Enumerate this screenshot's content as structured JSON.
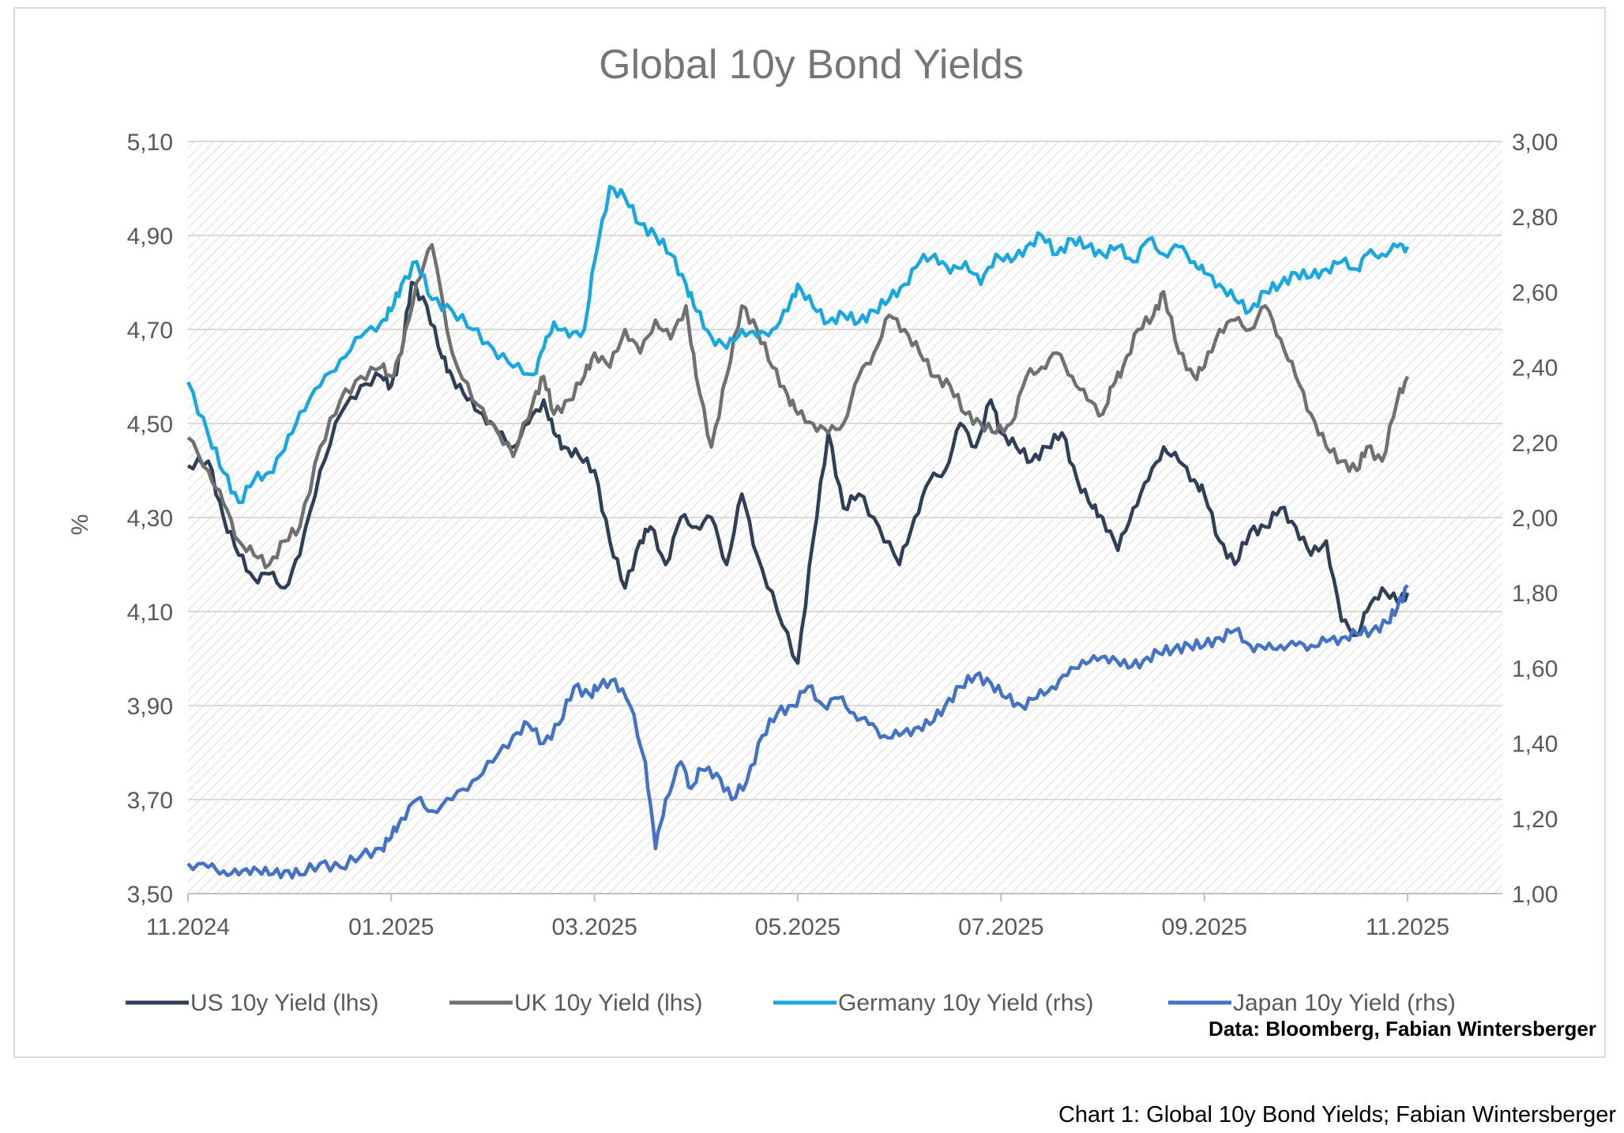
{
  "chart_data": {
    "type": "line",
    "title": "Global 10y Bond Yields",
    "ylabel": "%",
    "y2label": "",
    "ylim": [
      3.5,
      5.1
    ],
    "y2lim": [
      1.0,
      3.0
    ],
    "grid": true,
    "legend_position": "bottom",
    "x_ticks": [
      "11.2024",
      "01.2025",
      "03.2025",
      "05.2025",
      "07.2025",
      "09.2025",
      "11.2025"
    ],
    "x_tick_months": [
      0,
      2,
      4,
      6,
      8,
      10,
      12
    ],
    "y_ticks": [
      "3,50",
      "3,70",
      "3,90",
      "4,10",
      "4,30",
      "4,50",
      "4,70",
      "4,90",
      "5,10"
    ],
    "y_tick_values": [
      3.5,
      3.7,
      3.9,
      4.1,
      4.3,
      4.5,
      4.7,
      4.9,
      5.1
    ],
    "y2_ticks": [
      "1,00",
      "1,20",
      "1,40",
      "1,60",
      "1,80",
      "2,00",
      "2,20",
      "2,40",
      "2,60",
      "2,80",
      "3,00"
    ],
    "y2_tick_values": [
      1.0,
      1.2,
      1.4,
      1.6,
      1.8,
      2.0,
      2.2,
      2.4,
      2.6,
      2.8,
      3.0
    ],
    "series": [
      {
        "name": "US 10y Yield (lhs)",
        "axis": "left",
        "color": "#2e3f57",
        "x": [
          0,
          0.2,
          0.35,
          0.5,
          0.65,
          0.8,
          0.95,
          1.1,
          1.3,
          1.5,
          1.7,
          1.9,
          2.0,
          2.1,
          2.2,
          2.35,
          2.5,
          2.6,
          2.75,
          2.9,
          3.05,
          3.2,
          3.35,
          3.5,
          3.6,
          3.7,
          3.85,
          4.0,
          4.15,
          4.3,
          4.45,
          4.55,
          4.7,
          4.85,
          5.0,
          5.15,
          5.3,
          5.45,
          5.6,
          5.8,
          6.0,
          6.15,
          6.3,
          6.45,
          6.6,
          6.8,
          7.0,
          7.15,
          7.3,
          7.45,
          7.6,
          7.75,
          7.9,
          8.0,
          8.15,
          8.3,
          8.45,
          8.6,
          8.75,
          8.9,
          9.0,
          9.15,
          9.3,
          9.45,
          9.6,
          9.75,
          9.9,
          10.0,
          10.15,
          10.3,
          10.45,
          10.6,
          10.75,
          10.9,
          11.05,
          11.2,
          11.35,
          11.5,
          11.6,
          11.75,
          11.9,
          12.0
        ],
        "values": [
          4.41,
          4.42,
          4.3,
          4.22,
          4.17,
          4.18,
          4.15,
          4.22,
          4.4,
          4.52,
          4.58,
          4.6,
          4.58,
          4.65,
          4.8,
          4.75,
          4.64,
          4.6,
          4.55,
          4.52,
          4.48,
          4.45,
          4.5,
          4.55,
          4.48,
          4.45,
          4.43,
          4.4,
          4.25,
          4.15,
          4.25,
          4.28,
          4.2,
          4.3,
          4.28,
          4.3,
          4.2,
          4.35,
          4.22,
          4.1,
          3.99,
          4.25,
          4.48,
          4.32,
          4.35,
          4.28,
          4.2,
          4.3,
          4.38,
          4.4,
          4.5,
          4.45,
          4.55,
          4.48,
          4.45,
          4.42,
          4.45,
          4.48,
          4.38,
          4.32,
          4.3,
          4.23,
          4.32,
          4.38,
          4.45,
          4.42,
          4.38,
          4.35,
          4.25,
          4.2,
          4.27,
          4.28,
          4.32,
          4.28,
          4.22,
          4.25,
          4.08,
          4.05,
          4.1,
          4.15,
          4.12,
          4.14
        ]
      },
      {
        "name": "UK 10y Yield (lhs)",
        "axis": "left",
        "color": "#707070",
        "x": [
          0,
          0.2,
          0.35,
          0.5,
          0.65,
          0.8,
          0.95,
          1.1,
          1.3,
          1.5,
          1.7,
          1.9,
          2.0,
          2.1,
          2.25,
          2.4,
          2.6,
          2.8,
          3.0,
          3.2,
          3.4,
          3.5,
          3.6,
          3.75,
          3.9,
          4.0,
          4.15,
          4.3,
          4.45,
          4.6,
          4.75,
          4.9,
          5.0,
          5.15,
          5.3,
          5.45,
          5.6,
          5.75,
          5.9,
          6.0,
          6.15,
          6.3,
          6.45,
          6.6,
          6.75,
          6.9,
          7.05,
          7.2,
          7.35,
          7.5,
          7.65,
          7.8,
          7.95,
          8.1,
          8.25,
          8.4,
          8.55,
          8.7,
          8.85,
          9.0,
          9.1,
          9.2,
          9.35,
          9.5,
          9.6,
          9.75,
          9.9,
          10.0,
          10.15,
          10.3,
          10.45,
          10.6,
          10.75,
          10.9,
          11.05,
          11.2,
          11.35,
          11.5,
          11.6,
          11.75,
          11.9,
          12.0
        ],
        "values": [
          4.47,
          4.4,
          4.33,
          4.25,
          4.22,
          4.2,
          4.25,
          4.28,
          4.45,
          4.55,
          4.6,
          4.62,
          4.6,
          4.65,
          4.8,
          4.88,
          4.65,
          4.55,
          4.5,
          4.43,
          4.55,
          4.6,
          4.52,
          4.55,
          4.6,
          4.65,
          4.62,
          4.7,
          4.65,
          4.72,
          4.68,
          4.75,
          4.6,
          4.45,
          4.6,
          4.75,
          4.7,
          4.62,
          4.56,
          4.52,
          4.5,
          4.48,
          4.5,
          4.6,
          4.65,
          4.73,
          4.7,
          4.65,
          4.6,
          4.58,
          4.52,
          4.5,
          4.48,
          4.5,
          4.6,
          4.62,
          4.65,
          4.6,
          4.55,
          4.52,
          4.58,
          4.62,
          4.7,
          4.73,
          4.78,
          4.65,
          4.6,
          4.62,
          4.7,
          4.72,
          4.7,
          4.75,
          4.68,
          4.6,
          4.52,
          4.45,
          4.42,
          4.4,
          4.45,
          4.42,
          4.55,
          4.6
        ]
      },
      {
        "name": "Germany 10y Yield (rhs)",
        "axis": "right",
        "color": "#19a7e0",
        "x": [
          0,
          0.2,
          0.35,
          0.5,
          0.65,
          0.8,
          0.95,
          1.1,
          1.3,
          1.5,
          1.7,
          1.9,
          2.0,
          2.1,
          2.25,
          2.4,
          2.6,
          2.8,
          3.0,
          3.2,
          3.4,
          3.5,
          3.6,
          3.75,
          3.9,
          4.0,
          4.15,
          4.3,
          4.45,
          4.6,
          4.75,
          4.9,
          5.0,
          5.15,
          5.3,
          5.45,
          5.6,
          5.75,
          5.9,
          6.0,
          6.15,
          6.3,
          6.45,
          6.6,
          6.75,
          6.9,
          7.05,
          7.2,
          7.35,
          7.5,
          7.65,
          7.8,
          7.95,
          8.1,
          8.25,
          8.4,
          8.55,
          8.7,
          8.85,
          9.0,
          9.15,
          9.3,
          9.45,
          9.6,
          9.75,
          9.9,
          10.0,
          10.15,
          10.3,
          10.45,
          10.6,
          10.75,
          10.9,
          11.05,
          11.2,
          11.35,
          11.5,
          11.6,
          11.75,
          11.9,
          12.0
        ],
        "values": [
          2.36,
          2.22,
          2.12,
          2.04,
          2.1,
          2.12,
          2.18,
          2.28,
          2.35,
          2.42,
          2.48,
          2.52,
          2.55,
          2.62,
          2.68,
          2.58,
          2.55,
          2.5,
          2.45,
          2.4,
          2.38,
          2.45,
          2.52,
          2.48,
          2.5,
          2.68,
          2.88,
          2.85,
          2.78,
          2.75,
          2.7,
          2.62,
          2.55,
          2.48,
          2.45,
          2.5,
          2.48,
          2.5,
          2.55,
          2.62,
          2.56,
          2.52,
          2.54,
          2.52,
          2.55,
          2.58,
          2.62,
          2.68,
          2.7,
          2.65,
          2.68,
          2.62,
          2.7,
          2.68,
          2.72,
          2.75,
          2.7,
          2.74,
          2.72,
          2.7,
          2.72,
          2.68,
          2.74,
          2.7,
          2.72,
          2.68,
          2.65,
          2.62,
          2.58,
          2.55,
          2.6,
          2.62,
          2.65,
          2.64,
          2.66,
          2.68,
          2.66,
          2.7,
          2.7,
          2.72,
          2.72
        ]
      },
      {
        "name": "Japan 10y Yield (rhs)",
        "axis": "right",
        "color": "#4472c4",
        "x": [
          0,
          0.2,
          0.35,
          0.5,
          0.65,
          0.8,
          0.95,
          1.1,
          1.3,
          1.5,
          1.7,
          1.9,
          2.0,
          2.1,
          2.25,
          2.4,
          2.6,
          2.8,
          3.0,
          3.2,
          3.35,
          3.5,
          3.65,
          3.8,
          3.95,
          4.05,
          4.2,
          4.35,
          4.5,
          4.6,
          4.7,
          4.85,
          4.95,
          5.05,
          5.2,
          5.35,
          5.5,
          5.65,
          5.8,
          5.95,
          6.1,
          6.25,
          6.4,
          6.55,
          6.7,
          6.85,
          7.0,
          7.15,
          7.3,
          7.45,
          7.6,
          7.75,
          7.9,
          8.05,
          8.2,
          8.35,
          8.5,
          8.65,
          8.8,
          8.95,
          9.1,
          9.25,
          9.4,
          9.55,
          9.7,
          9.85,
          10.0,
          10.15,
          10.3,
          10.45,
          10.6,
          10.75,
          10.9,
          11.05,
          11.2,
          11.35,
          11.5,
          11.65,
          11.8,
          11.9,
          12.0
        ],
        "values": [
          1.08,
          1.07,
          1.06,
          1.05,
          1.07,
          1.05,
          1.06,
          1.05,
          1.08,
          1.07,
          1.1,
          1.12,
          1.15,
          1.2,
          1.25,
          1.22,
          1.25,
          1.3,
          1.35,
          1.42,
          1.45,
          1.4,
          1.45,
          1.55,
          1.53,
          1.55,
          1.57,
          1.5,
          1.35,
          1.12,
          1.25,
          1.35,
          1.28,
          1.33,
          1.32,
          1.25,
          1.3,
          1.42,
          1.48,
          1.5,
          1.55,
          1.5,
          1.52,
          1.48,
          1.45,
          1.42,
          1.42,
          1.44,
          1.45,
          1.5,
          1.55,
          1.58,
          1.56,
          1.52,
          1.5,
          1.52,
          1.55,
          1.58,
          1.62,
          1.62,
          1.63,
          1.6,
          1.62,
          1.64,
          1.65,
          1.66,
          1.66,
          1.68,
          1.7,
          1.66,
          1.65,
          1.66,
          1.66,
          1.66,
          1.67,
          1.68,
          1.69,
          1.7,
          1.72,
          1.76,
          1.82
        ]
      }
    ]
  },
  "source_note": "Data: Bloomberg, Fabian Wintersberger",
  "caption": "Chart 1: Global 10y Bond Yields; Fabian Wintersberger"
}
